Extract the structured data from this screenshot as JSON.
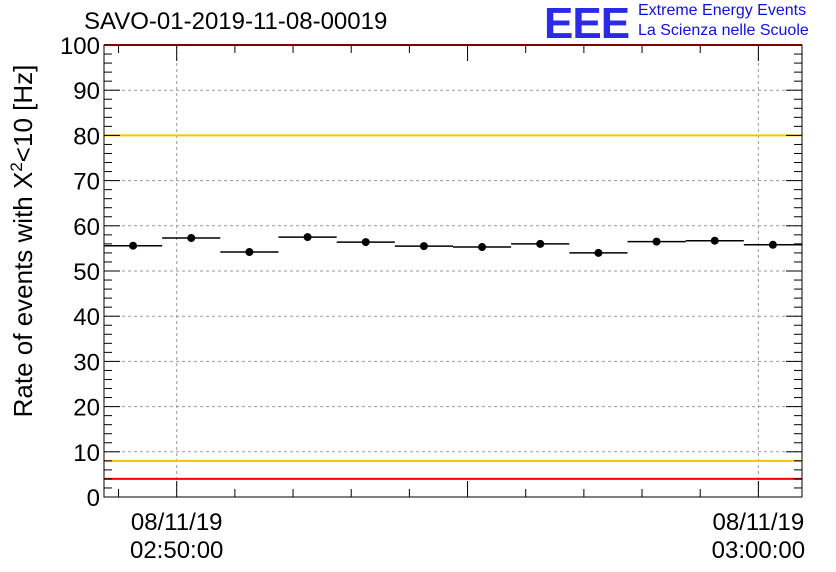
{
  "chart_data": {
    "type": "scatter",
    "title": "SAVO-01-2019-11-08-00019",
    "ylabel_main": "Rate of events with X",
    "ylabel_sup": "2",
    "ylabel_rest": "<10 [Hz]",
    "ylim": [
      0,
      100
    ],
    "yticks": [
      0,
      10,
      20,
      30,
      40,
      50,
      60,
      70,
      80,
      90,
      100
    ],
    "x_tick_labels": [
      {
        "date": "08/11/19",
        "time": "02:50:00"
      },
      {
        "date": "08/11/19",
        "time": "03:00:00"
      }
    ],
    "xlim_minutes": [
      -1.25,
      10.75
    ],
    "grid": true,
    "reference_lines": [
      {
        "value": 100,
        "color": "#ff0000"
      },
      {
        "value": 80,
        "color": "#f5c400"
      },
      {
        "value": 8,
        "color": "#f5c400"
      },
      {
        "value": 4,
        "color": "#ff0000"
      }
    ],
    "bin_width_minutes": 1,
    "points": [
      {
        "x": -0.75,
        "y": 55.6
      },
      {
        "x": 0.25,
        "y": 57.3
      },
      {
        "x": 1.25,
        "y": 54.2
      },
      {
        "x": 2.25,
        "y": 57.5
      },
      {
        "x": 3.25,
        "y": 56.4
      },
      {
        "x": 4.25,
        "y": 55.5
      },
      {
        "x": 5.25,
        "y": 55.3
      },
      {
        "x": 6.25,
        "y": 56.0
      },
      {
        "x": 7.25,
        "y": 54.0
      },
      {
        "x": 8.25,
        "y": 56.5
      },
      {
        "x": 9.25,
        "y": 56.7
      },
      {
        "x": 10.25,
        "y": 55.8
      }
    ]
  },
  "logo": {
    "mark": "EEE",
    "line1": "Extreme Energy Events",
    "line2": "La Scienza nelle Scuole"
  }
}
